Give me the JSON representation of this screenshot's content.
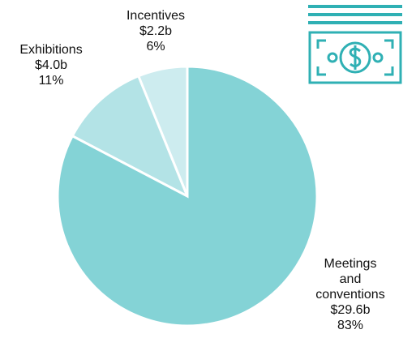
{
  "chart_data": {
    "type": "pie",
    "categories": [
      "Meetings and conventions",
      "Exhibitions",
      "Incentives"
    ],
    "values": [
      29.6,
      4.0,
      2.2
    ],
    "value_labels": [
      "$29.6b",
      "$4.0b",
      "$2.2b"
    ],
    "shares": [
      "83%",
      "11%",
      "6%"
    ],
    "colors": [
      "#84d3d6",
      "#b3e3e6",
      "#cdecef"
    ]
  }
}
